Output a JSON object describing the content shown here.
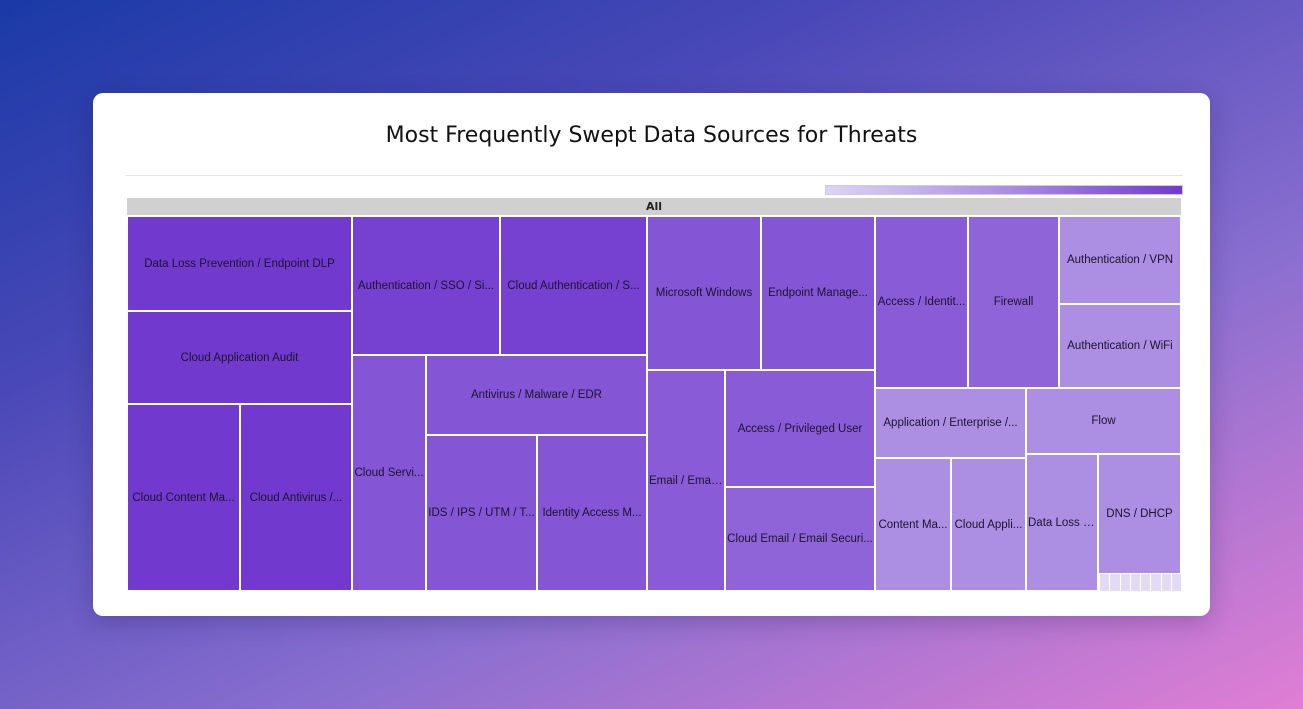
{
  "chart_data": {
    "type": "treemap",
    "title": "Most Frequently Swept Data Sources for Threats",
    "root_label": "All",
    "color_scale": {
      "low": "#ddd4f3",
      "high": "#7139ce"
    },
    "cells": [
      {
        "label": "Data Loss Prevention / Endpoint DLP",
        "level": 1.0
      },
      {
        "label": "Cloud Application Audit",
        "level": 1.0
      },
      {
        "label": "Cloud Content Ma...",
        "level": 1.0
      },
      {
        "label": "Cloud Antivirus /...",
        "level": 1.0
      },
      {
        "label": "Authentication / SSO / Si...",
        "level": 0.95
      },
      {
        "label": "Cloud Authentication / S...",
        "level": 0.95
      },
      {
        "label": "Cloud Servi...",
        "level": 0.82
      },
      {
        "label": "Antivirus / Malware / EDR",
        "level": 0.82
      },
      {
        "label": "IDS / IPS / UTM / T...",
        "level": 0.82
      },
      {
        "label": "Identity Access M...",
        "level": 0.82
      },
      {
        "label": "Microsoft Windows",
        "level": 0.82
      },
      {
        "label": "Endpoint Manage...",
        "level": 0.82
      },
      {
        "label": "Email / Email...",
        "level": 0.78
      },
      {
        "label": "Access / Privileged User",
        "level": 0.78
      },
      {
        "label": "Cloud Email / Email Securi...",
        "level": 0.72
      },
      {
        "label": "Access / Identit...",
        "level": 0.78
      },
      {
        "label": "Firewall",
        "level": 0.72
      },
      {
        "label": "Authentication / VPN",
        "level": 0.45
      },
      {
        "label": "Authentication / WiFi",
        "level": 0.45
      },
      {
        "label": "Application / Enterprise /...",
        "level": 0.45
      },
      {
        "label": "Flow",
        "level": 0.45
      },
      {
        "label": "Content Ma...",
        "level": 0.45
      },
      {
        "label": "Cloud Appli...",
        "level": 0.45
      },
      {
        "label": "Data Loss P...",
        "level": 0.45
      },
      {
        "label": "DNS / DHCP",
        "level": 0.45
      }
    ]
  }
}
